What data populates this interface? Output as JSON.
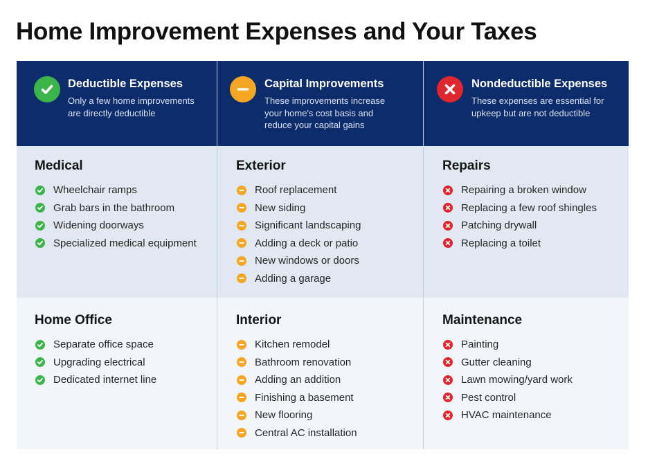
{
  "title": "Home Improvement Expenses and Your Taxes",
  "colors": {
    "header_bg": "#0c2c6b",
    "row1_bg": "#e2e8f1",
    "row2_bg": "#f2f6fb",
    "deductible": "#3bb54a",
    "capital": "#f5a623",
    "nondeductible": "#e0262e"
  },
  "header": {
    "deductible": {
      "icon": "check-circle-icon",
      "title": "Deductible Expenses",
      "description": "Only a few home improvements\nare directly deductible"
    },
    "capital": {
      "icon": "minus-circle-icon",
      "title": "Capital Improvements",
      "description": "These improvements increase\nyour home's cost basis and\nreduce your capital gains"
    },
    "nondeductible": {
      "icon": "x-circle-icon",
      "title": "Nondeductible Expenses",
      "description": "These expenses are essential for\nupkeep but are not deductible"
    }
  },
  "sections": {
    "medical": {
      "title": "Medical",
      "items": [
        "Wheelchair ramps",
        "Grab bars in the bathroom",
        "Widening doorways",
        "Specialized medical equipment"
      ]
    },
    "exterior": {
      "title": "Exterior",
      "items": [
        "Roof replacement",
        "New siding",
        "Significant landscaping",
        "Adding a deck or patio",
        "New windows or doors",
        "Adding a garage"
      ]
    },
    "repairs": {
      "title": "Repairs",
      "items": [
        "Repairing a broken window",
        "Replacing a few roof shingles",
        "Patching drywall",
        "Replacing a toilet"
      ]
    },
    "home_office": {
      "title": "Home Office",
      "items": [
        "Separate office space",
        "Upgrading electrical",
        "Dedicated internet line"
      ]
    },
    "interior": {
      "title": "Interior",
      "items": [
        "Kitchen remodel",
        "Bathroom renovation",
        "Adding an addition",
        "Finishing a basement",
        "New flooring",
        "Central AC installation"
      ]
    },
    "maintenance": {
      "title": "Maintenance",
      "items": [
        "Painting",
        "Gutter cleaning",
        "Lawn mowing/yard work",
        "Pest control",
        "HVAC maintenance"
      ]
    }
  }
}
